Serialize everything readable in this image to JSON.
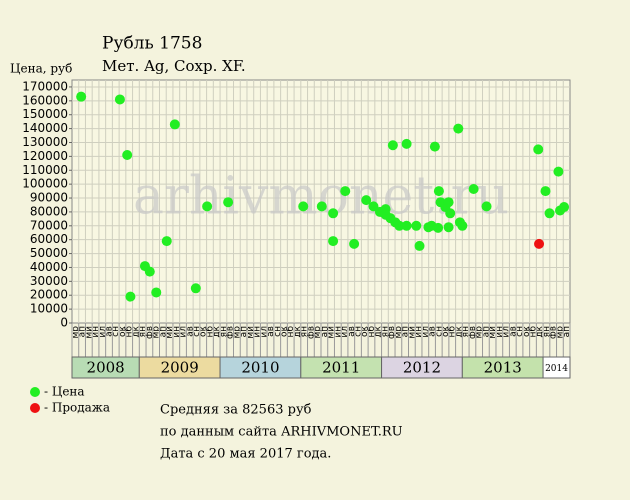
{
  "chart_data": {
    "type": "scatter",
    "title": "Рубль 1758",
    "subtitle": "Мет. Ag, Сохр. XF.",
    "y_label": "Цена, руб",
    "watermark": "arhivmonet.ru",
    "xlim": [
      2008.1667,
      2014.3333
    ],
    "ylim": [
      0,
      175000
    ],
    "yticks": [
      0,
      10000,
      20000,
      30000,
      40000,
      50000,
      60000,
      70000,
      80000,
      90000,
      100000,
      110000,
      120000,
      130000,
      140000,
      150000,
      160000,
      170000
    ],
    "grid": true,
    "years": [
      "2008",
      "2009",
      "2010",
      "2011",
      "2012",
      "2013",
      "2014"
    ],
    "year_colors": [
      "#b8dcb4",
      "#ecdba0",
      "#b6d4dc",
      "#c4e2b0",
      "#dcd4e2",
      "#c4e2ac",
      "#ffffff"
    ],
    "month_names": [
      "ян",
      "фв",
      "мр",
      "ап",
      "мй",
      "ин",
      "ил",
      "ав",
      "сн",
      "ок",
      "нб",
      "дк"
    ],
    "series": [
      {
        "name": "- Цена",
        "color": "#22ee22",
        "x": [
          2008.28,
          2008.76,
          2008.85,
          2008.89,
          2009.07,
          2009.13,
          2009.21,
          2009.34,
          2009.44,
          2009.7,
          2009.84,
          2010.1,
          2011.03,
          2011.26,
          2011.4,
          2011.4,
          2011.55,
          2011.66,
          2011.81,
          2011.9,
          2011.98,
          2012.05,
          2012.05,
          2012.11,
          2012.14,
          2012.17,
          2012.22,
          2012.31,
          2012.31,
          2012.43,
          2012.47,
          2012.58,
          2012.62,
          2012.66,
          2012.7,
          2012.71,
          2012.73,
          2012.79,
          2012.83,
          2012.85,
          2012.83,
          2012.95,
          2012.97,
          2013.0,
          2013.14,
          2013.3,
          2013.94,
          2014.03,
          2014.08,
          2014.19,
          2014.21,
          2014.26
        ],
        "values": [
          163000,
          161000,
          121000,
          19000,
          41000,
          37000,
          22000,
          59000,
          143000,
          25000,
          84000,
          87000,
          84000,
          84000,
          79000,
          59000,
          95000,
          57000,
          88500,
          84000,
          80000,
          82000,
          78000,
          75500,
          128000,
          72500,
          70000,
          129000,
          70000,
          70000,
          55500,
          69000,
          70000,
          127000,
          68500,
          95000,
          87000,
          83500,
          87000,
          79000,
          69000,
          140000,
          72500,
          70000,
          96500,
          84000,
          125000,
          95000,
          79000,
          109000,
          81000,
          83500
        ]
      },
      {
        "name": "- Продажа",
        "color": "#ee1111",
        "x": [
          2013.95
        ],
        "values": [
          57000
        ]
      }
    ],
    "notes": [
      "Средняя за 82563 руб",
      "по данным сайта ARHIVMONET.RU",
      "Дата с 20 мая 2017 года."
    ]
  }
}
